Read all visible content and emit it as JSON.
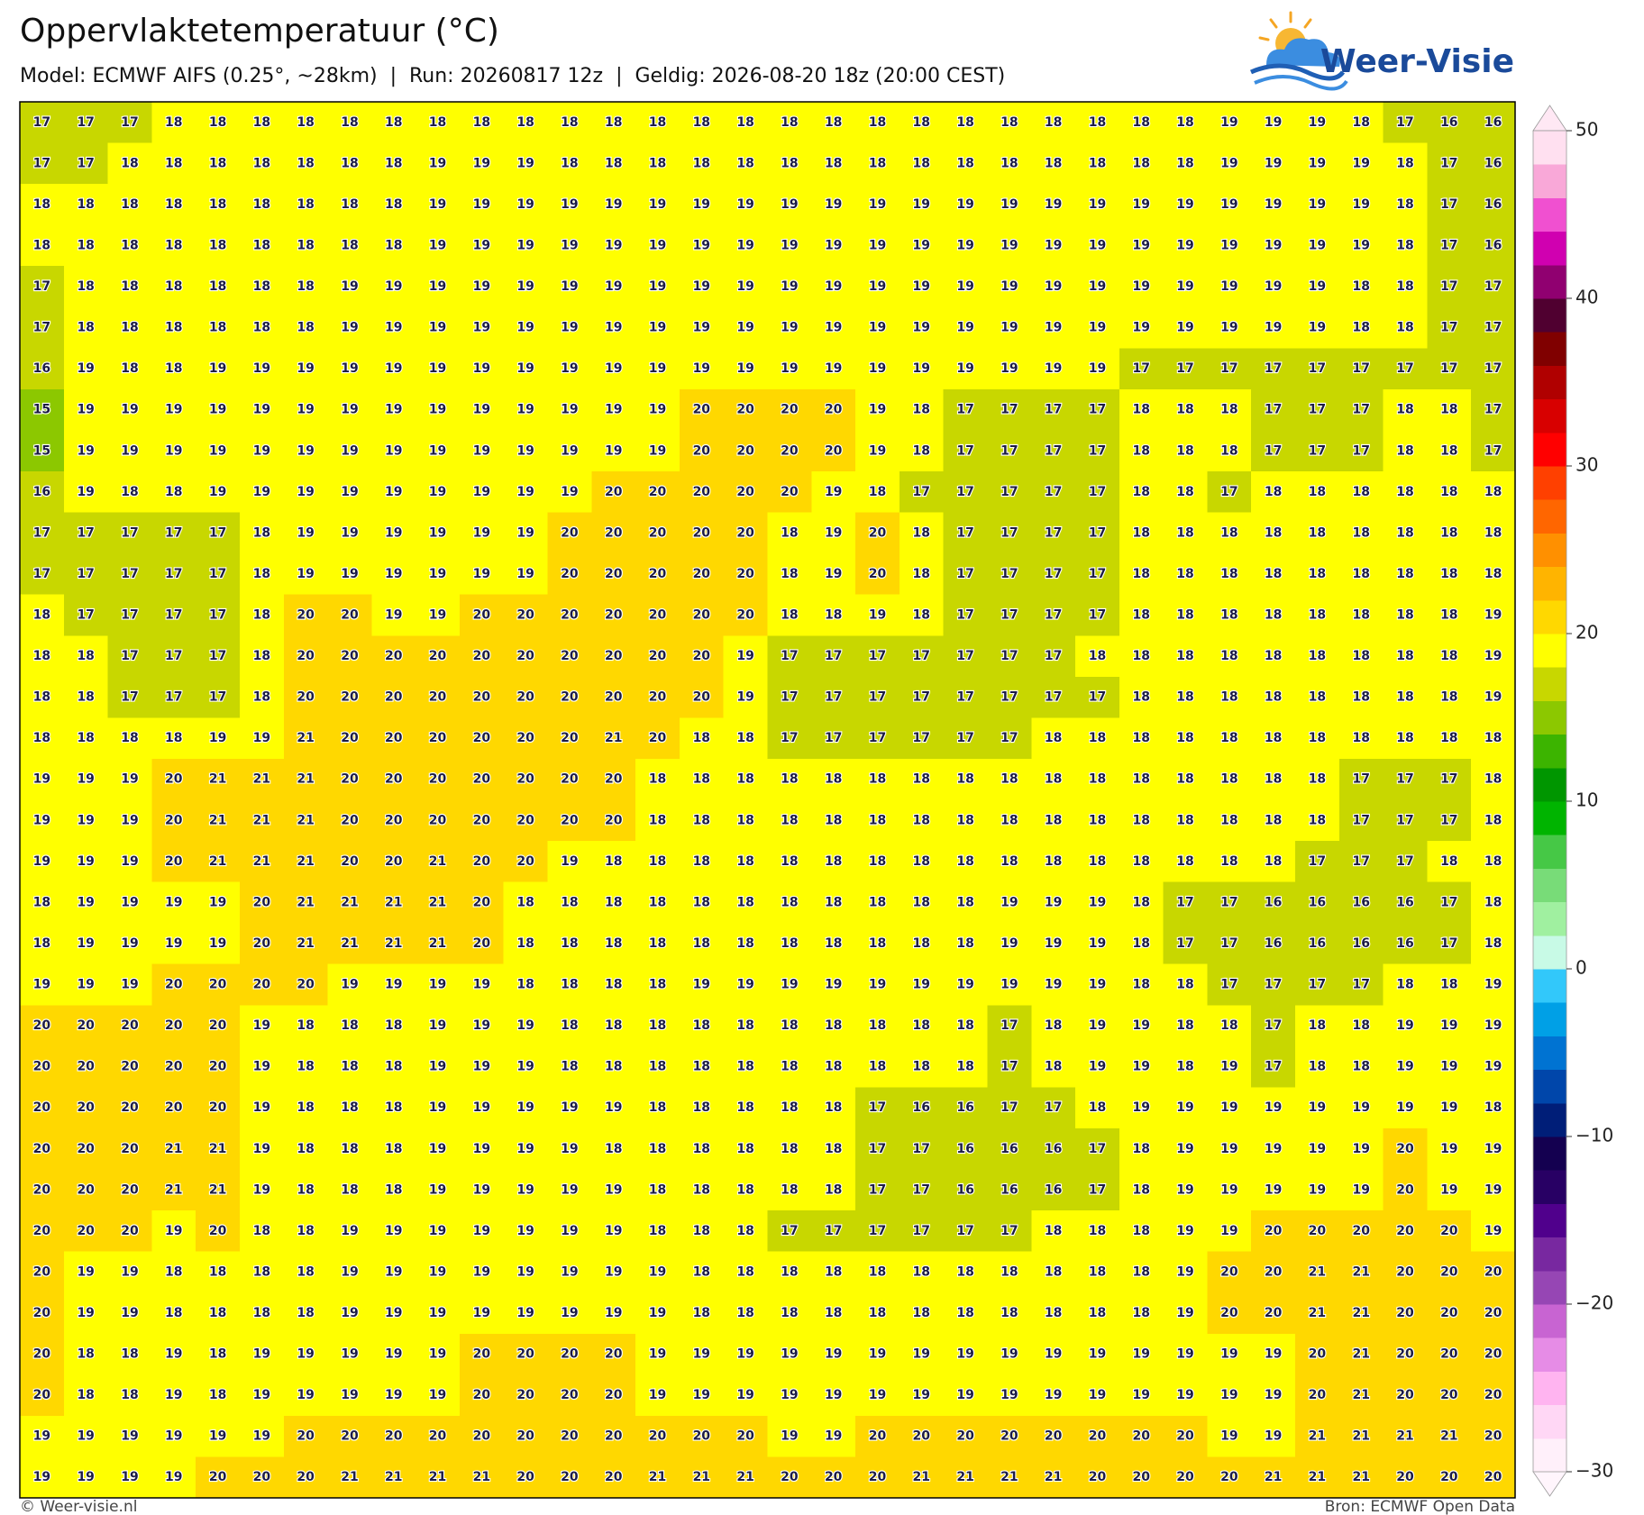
{
  "header": {
    "title": "Oppervlaktetemperatuur (°C)",
    "subtitle": "Model: ECMWF AIFS (0.25°, ~28km)  |  Run: 20260817 12z  |  Geldig: 2026-08-20 18z (20:00 CEST)",
    "logo": "Weer-Visie"
  },
  "map": {
    "rows": [
      [
        17,
        17,
        17,
        18,
        18,
        18,
        18,
        18,
        18,
        18,
        18,
        18,
        18,
        18,
        18,
        18,
        18,
        18,
        18,
        18,
        18,
        18,
        18,
        18,
        18,
        18,
        18,
        19,
        19,
        19,
        18,
        17,
        16,
        16
      ],
      [
        17,
        17,
        18,
        18,
        18,
        18,
        18,
        18,
        18,
        19,
        19,
        19,
        18,
        18,
        18,
        18,
        18,
        18,
        18,
        18,
        18,
        18,
        18,
        18,
        18,
        18,
        18,
        19,
        19,
        19,
        19,
        18,
        17,
        16
      ],
      [
        18,
        18,
        18,
        18,
        18,
        18,
        18,
        18,
        18,
        19,
        19,
        19,
        19,
        19,
        19,
        19,
        19,
        19,
        19,
        19,
        19,
        19,
        19,
        19,
        19,
        19,
        19,
        19,
        19,
        19,
        19,
        18,
        17,
        16
      ],
      [
        18,
        18,
        18,
        18,
        18,
        18,
        18,
        18,
        18,
        19,
        19,
        19,
        19,
        19,
        19,
        19,
        19,
        19,
        19,
        19,
        19,
        19,
        19,
        19,
        19,
        19,
        19,
        19,
        19,
        19,
        19,
        18,
        17,
        16
      ],
      [
        17,
        18,
        18,
        18,
        18,
        18,
        18,
        19,
        19,
        19,
        19,
        19,
        19,
        19,
        19,
        19,
        19,
        19,
        19,
        19,
        19,
        19,
        19,
        19,
        19,
        19,
        19,
        19,
        19,
        19,
        18,
        18,
        17,
        17
      ],
      [
        17,
        18,
        18,
        18,
        18,
        18,
        18,
        19,
        19,
        19,
        19,
        19,
        19,
        19,
        19,
        19,
        19,
        19,
        19,
        19,
        19,
        19,
        19,
        19,
        19,
        19,
        19,
        19,
        19,
        19,
        18,
        18,
        17,
        17
      ],
      [
        16,
        19,
        18,
        18,
        19,
        19,
        19,
        19,
        19,
        19,
        19,
        19,
        19,
        19,
        19,
        19,
        19,
        19,
        19,
        19,
        19,
        19,
        19,
        19,
        19,
        17,
        17,
        17,
        17,
        17,
        17,
        17,
        17,
        17
      ],
      [
        15,
        19,
        19,
        19,
        19,
        19,
        19,
        19,
        19,
        19,
        19,
        19,
        19,
        19,
        19,
        20,
        20,
        20,
        20,
        19,
        18,
        17,
        17,
        17,
        17,
        18,
        18,
        18,
        17,
        17,
        17,
        18,
        18,
        17
      ],
      [
        15,
        19,
        19,
        19,
        19,
        19,
        19,
        19,
        19,
        19,
        19,
        19,
        19,
        19,
        19,
        20,
        20,
        20,
        20,
        19,
        18,
        17,
        17,
        17,
        17,
        18,
        18,
        18,
        17,
        17,
        17,
        18,
        18,
        17
      ],
      [
        16,
        19,
        18,
        18,
        19,
        19,
        19,
        19,
        19,
        19,
        19,
        19,
        19,
        20,
        20,
        20,
        20,
        20,
        19,
        18,
        17,
        17,
        17,
        17,
        17,
        18,
        18,
        17,
        18,
        18,
        18,
        18,
        18,
        18
      ],
      [
        17,
        17,
        17,
        17,
        17,
        18,
        19,
        19,
        19,
        19,
        19,
        19,
        20,
        20,
        20,
        20,
        20,
        18,
        19,
        20,
        18,
        17,
        17,
        17,
        17,
        18,
        18,
        18,
        18,
        18,
        18,
        18,
        18,
        18
      ],
      [
        17,
        17,
        17,
        17,
        17,
        18,
        19,
        19,
        19,
        19,
        19,
        19,
        20,
        20,
        20,
        20,
        20,
        18,
        19,
        20,
        18,
        17,
        17,
        17,
        17,
        18,
        18,
        18,
        18,
        18,
        18,
        18,
        18,
        18
      ],
      [
        18,
        17,
        17,
        17,
        17,
        18,
        20,
        20,
        19,
        19,
        20,
        20,
        20,
        20,
        20,
        20,
        20,
        18,
        18,
        19,
        18,
        17,
        17,
        17,
        17,
        18,
        18,
        18,
        18,
        18,
        18,
        18,
        18,
        19
      ],
      [
        18,
        18,
        17,
        17,
        17,
        18,
        20,
        20,
        20,
        20,
        20,
        20,
        20,
        20,
        20,
        20,
        19,
        17,
        17,
        17,
        17,
        17,
        17,
        17,
        18,
        18,
        18,
        18,
        18,
        18,
        18,
        18,
        18,
        19
      ],
      [
        18,
        18,
        17,
        17,
        17,
        18,
        20,
        20,
        20,
        20,
        20,
        20,
        20,
        20,
        20,
        20,
        19,
        17,
        17,
        17,
        17,
        17,
        17,
        17,
        17,
        18,
        18,
        18,
        18,
        18,
        18,
        18,
        18,
        19
      ],
      [
        18,
        18,
        18,
        18,
        19,
        19,
        21,
        20,
        20,
        20,
        20,
        20,
        20,
        21,
        20,
        18,
        18,
        17,
        17,
        17,
        17,
        17,
        17,
        18,
        18,
        18,
        18,
        18,
        18,
        18,
        18,
        18,
        18,
        18
      ],
      [
        19,
        19,
        19,
        20,
        21,
        21,
        21,
        20,
        20,
        20,
        20,
        20,
        20,
        20,
        18,
        18,
        18,
        18,
        18,
        18,
        18,
        18,
        18,
        18,
        18,
        18,
        18,
        18,
        18,
        18,
        17,
        17,
        17,
        18
      ],
      [
        19,
        19,
        19,
        20,
        21,
        21,
        21,
        20,
        20,
        20,
        20,
        20,
        20,
        20,
        18,
        18,
        18,
        18,
        18,
        18,
        18,
        18,
        18,
        18,
        18,
        18,
        18,
        18,
        18,
        18,
        17,
        17,
        17,
        18
      ],
      [
        19,
        19,
        19,
        20,
        21,
        21,
        21,
        20,
        20,
        21,
        20,
        20,
        19,
        18,
        18,
        18,
        18,
        18,
        18,
        18,
        18,
        18,
        18,
        18,
        18,
        18,
        18,
        18,
        18,
        17,
        17,
        17,
        18,
        18
      ],
      [
        18,
        19,
        19,
        19,
        19,
        20,
        21,
        21,
        21,
        21,
        20,
        18,
        18,
        18,
        18,
        18,
        18,
        18,
        18,
        18,
        18,
        18,
        19,
        19,
        19,
        18,
        17,
        17,
        16,
        16,
        16,
        16,
        17,
        18
      ],
      [
        18,
        19,
        19,
        19,
        19,
        20,
        21,
        21,
        21,
        21,
        20,
        18,
        18,
        18,
        18,
        18,
        18,
        18,
        18,
        18,
        18,
        18,
        19,
        19,
        19,
        18,
        17,
        17,
        16,
        16,
        16,
        16,
        17,
        18
      ],
      [
        19,
        19,
        19,
        20,
        20,
        20,
        20,
        19,
        19,
        19,
        19,
        18,
        18,
        18,
        18,
        19,
        19,
        19,
        19,
        19,
        19,
        19,
        19,
        19,
        19,
        18,
        18,
        17,
        17,
        17,
        17,
        18,
        18,
        19
      ],
      [
        20,
        20,
        20,
        20,
        20,
        19,
        18,
        18,
        18,
        19,
        19,
        19,
        18,
        18,
        18,
        18,
        18,
        18,
        18,
        18,
        18,
        18,
        17,
        18,
        19,
        19,
        18,
        18,
        17,
        18,
        18,
        19,
        19,
        19
      ],
      [
        20,
        20,
        20,
        20,
        20,
        19,
        18,
        18,
        18,
        19,
        19,
        19,
        18,
        18,
        18,
        18,
        18,
        18,
        18,
        18,
        18,
        18,
        17,
        18,
        19,
        19,
        18,
        19,
        17,
        18,
        18,
        19,
        19,
        19
      ],
      [
        20,
        20,
        20,
        20,
        20,
        19,
        18,
        18,
        18,
        19,
        19,
        19,
        19,
        19,
        18,
        18,
        18,
        18,
        18,
        17,
        16,
        16,
        17,
        17,
        18,
        19,
        19,
        19,
        19,
        19,
        19,
        19,
        19,
        18
      ],
      [
        20,
        20,
        20,
        21,
        21,
        19,
        18,
        18,
        18,
        19,
        19,
        19,
        19,
        18,
        18,
        18,
        18,
        18,
        18,
        17,
        17,
        16,
        16,
        16,
        17,
        18,
        19,
        19,
        19,
        19,
        19,
        20,
        19,
        19
      ],
      [
        20,
        20,
        20,
        21,
        21,
        19,
        18,
        18,
        18,
        19,
        19,
        19,
        19,
        19,
        18,
        18,
        18,
        18,
        18,
        17,
        17,
        16,
        16,
        16,
        17,
        18,
        19,
        19,
        19,
        19,
        19,
        20,
        19,
        19
      ],
      [
        20,
        20,
        20,
        19,
        20,
        18,
        18,
        19,
        19,
        19,
        19,
        19,
        19,
        19,
        18,
        18,
        18,
        17,
        17,
        17,
        17,
        17,
        17,
        18,
        18,
        18,
        19,
        19,
        20,
        20,
        20,
        20,
        20,
        19
      ],
      [
        20,
        19,
        19,
        18,
        18,
        18,
        18,
        19,
        19,
        19,
        19,
        19,
        19,
        19,
        19,
        18,
        18,
        18,
        18,
        18,
        18,
        18,
        18,
        18,
        18,
        18,
        19,
        20,
        20,
        21,
        21,
        20,
        20,
        20
      ],
      [
        20,
        19,
        19,
        18,
        18,
        18,
        18,
        19,
        19,
        19,
        19,
        19,
        19,
        19,
        19,
        18,
        18,
        18,
        18,
        18,
        18,
        18,
        18,
        18,
        18,
        18,
        19,
        20,
        20,
        21,
        21,
        20,
        20,
        20
      ],
      [
        20,
        18,
        18,
        19,
        18,
        19,
        19,
        19,
        19,
        19,
        20,
        20,
        20,
        20,
        19,
        19,
        19,
        19,
        19,
        19,
        19,
        19,
        19,
        19,
        19,
        19,
        19,
        19,
        19,
        20,
        21,
        20,
        20,
        20
      ],
      [
        20,
        18,
        18,
        19,
        18,
        19,
        19,
        19,
        19,
        19,
        20,
        20,
        20,
        20,
        19,
        19,
        19,
        19,
        19,
        19,
        19,
        19,
        19,
        19,
        19,
        19,
        19,
        19,
        19,
        20,
        21,
        20,
        20,
        20
      ],
      [
        19,
        19,
        19,
        19,
        19,
        19,
        20,
        20,
        20,
        20,
        20,
        20,
        20,
        20,
        20,
        20,
        20,
        19,
        19,
        20,
        20,
        20,
        20,
        20,
        20,
        20,
        20,
        19,
        19,
        21,
        21,
        21,
        21,
        20
      ],
      [
        19,
        19,
        19,
        19,
        20,
        20,
        20,
        21,
        21,
        21,
        21,
        20,
        20,
        20,
        21,
        21,
        21,
        20,
        20,
        20,
        21,
        21,
        21,
        21,
        20,
        20,
        20,
        20,
        21,
        21,
        21,
        20,
        20,
        20
      ]
    ]
  },
  "colorbar": {
    "lim": [
      -30,
      50
    ],
    "ticks": [
      50,
      40,
      30,
      20,
      10,
      0,
      {
        "value": -10,
        "label": "−10"
      },
      {
        "value": -20,
        "label": "−20"
      },
      {
        "value": -30,
        "label": "−30"
      }
    ],
    "colors": [
      "#fff0fa",
      "#ffd7f5",
      "#ffb4f0",
      "#e68ce6",
      "#c864d2",
      "#9646b4",
      "#7828a0",
      "#50008c",
      "#280064",
      "#140050",
      "#001e78",
      "#0046aa",
      "#0073d2",
      "#00a0e6",
      "#32c8fa",
      "#c8fae6",
      "#a0f0a0",
      "#78dc78",
      "#46c846",
      "#00b400",
      "#009600",
      "#3cb400",
      "#8cc800",
      "#c8d700",
      "#ffff00",
      "#ffd800",
      "#ffb400",
      "#ff9000",
      "#ff6600",
      "#ff4000",
      "#ff0000",
      "#d80000",
      "#b00000",
      "#800000",
      "#500030",
      "#900070",
      "#d000b0",
      "#f050d0",
      "#f9a8d8",
      "#ffe0f0"
    ]
  },
  "footer": {
    "credit": "© Weer-visie.nl",
    "source": "Bron: ECMWF Open Data"
  }
}
